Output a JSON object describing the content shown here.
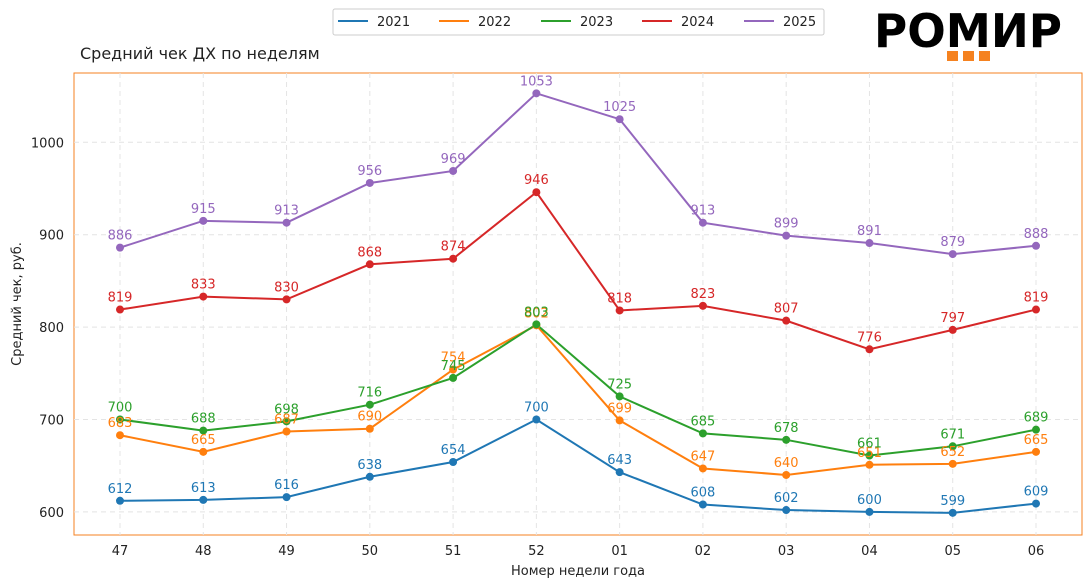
{
  "brand": {
    "logo_text": "РОМИР",
    "accent_color": "#f58220"
  },
  "chart_data": {
    "type": "line",
    "title": "Средний чек ДХ по неделям",
    "xlabel": "Номер недели года",
    "ylabel": "Средний чек, руб.",
    "categories": [
      "47",
      "48",
      "49",
      "50",
      "51",
      "52",
      "01",
      "02",
      "03",
      "04",
      "05",
      "06"
    ],
    "ylim": [
      575,
      1075
    ],
    "yticks": [
      600,
      700,
      800,
      900,
      1000
    ],
    "grid": true,
    "legend_position": "top-center",
    "series": [
      {
        "name": "2021",
        "color": "#1f77b4",
        "values": [
          612,
          613,
          616,
          638,
          654,
          700,
          643,
          608,
          602,
          600,
          599,
          609
        ]
      },
      {
        "name": "2022",
        "color": "#ff7f0e",
        "values": [
          683,
          665,
          687,
          690,
          754,
          802,
          699,
          647,
          640,
          651,
          652,
          665
        ]
      },
      {
        "name": "2023",
        "color": "#2ca02c",
        "values": [
          700,
          688,
          698,
          716,
          745,
          803,
          725,
          685,
          678,
          661,
          671,
          689
        ]
      },
      {
        "name": "2024",
        "color": "#d62728",
        "values": [
          819,
          833,
          830,
          868,
          874,
          946,
          818,
          823,
          807,
          776,
          797,
          819
        ]
      },
      {
        "name": "2025",
        "color": "#9467bd",
        "values": [
          886,
          915,
          913,
          956,
          969,
          1053,
          1025,
          913,
          899,
          891,
          879,
          888
        ]
      }
    ]
  }
}
